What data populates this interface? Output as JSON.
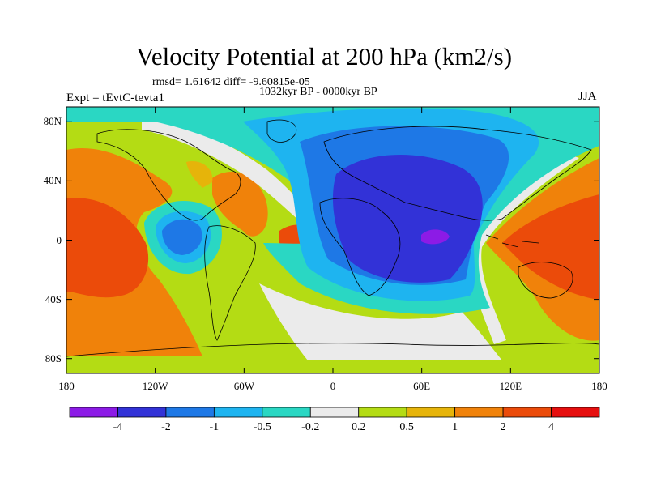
{
  "title": "Velocity Potential at 200 hPa (km2/s)",
  "stats_line": "rmsd= 1.61642 diff= -9.60815e-05",
  "period_line": "1032kyr BP - 0000kyr BP",
  "experiment_label": "Expt = tEvtC-tevta1",
  "season_label": "JJA",
  "lat_ticks": [
    {
      "value": 80,
      "label": "80N"
    },
    {
      "value": 40,
      "label": "40N"
    },
    {
      "value": 0,
      "label": "0"
    },
    {
      "value": -40,
      "label": "40S"
    },
    {
      "value": -80,
      "label": "80S"
    }
  ],
  "lon_ticks": [
    {
      "value": -180,
      "label": "180"
    },
    {
      "value": -120,
      "label": "120W"
    },
    {
      "value": -60,
      "label": "60W"
    },
    {
      "value": 0,
      "label": "0"
    },
    {
      "value": 60,
      "label": "60E"
    },
    {
      "value": 120,
      "label": "120E"
    },
    {
      "value": 180,
      "label": "180"
    }
  ],
  "colorbar": {
    "colors": [
      "#8c1be6",
      "#3232d7",
      "#1e78e6",
      "#1eb4f0",
      "#2ad7c3",
      "#ebebeb",
      "#b4dc14",
      "#e6b40a",
      "#f0820a",
      "#eb4b0a",
      "#e60f0f"
    ],
    "labels": [
      "-4",
      "-2",
      "-1",
      "-0.5",
      "-0.2",
      "0.2",
      "0.5",
      "1",
      "2",
      "4"
    ]
  },
  "map": {
    "lon_range": [
      -180,
      180
    ],
    "lat_range": [
      -90,
      90
    ],
    "background_color": "#b4dc14"
  }
}
